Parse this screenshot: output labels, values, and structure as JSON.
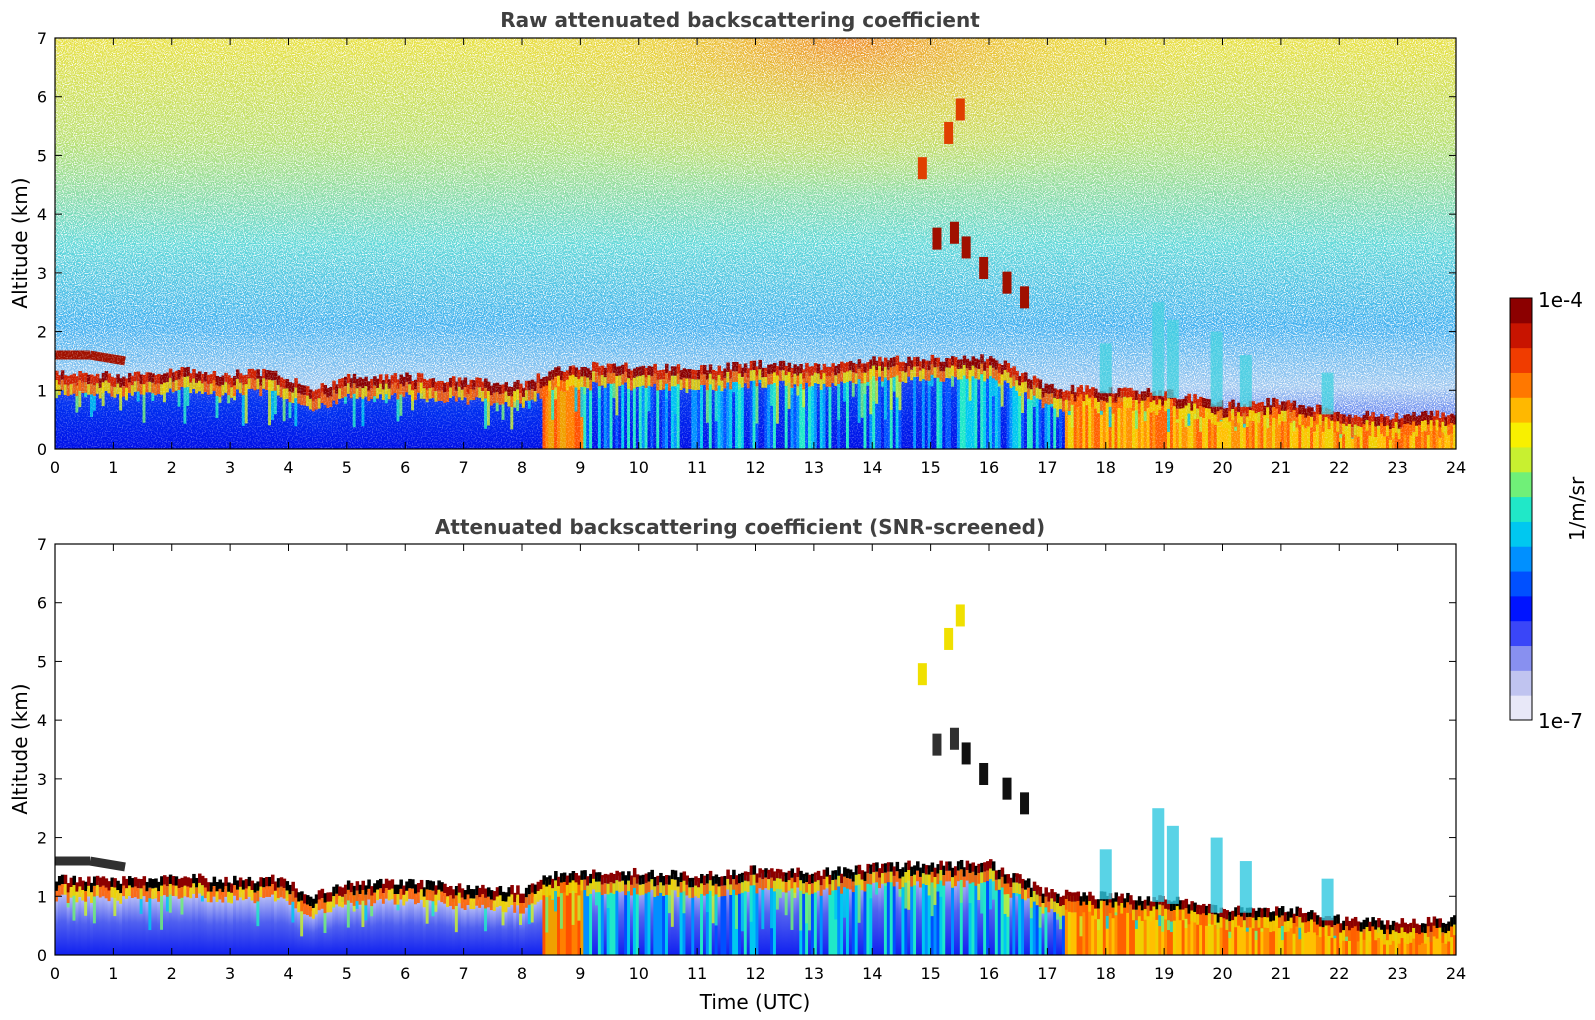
{
  "chart_data": [
    {
      "type": "heatmap",
      "title": "Raw attenuated backscattering coefficient",
      "xlabel": "",
      "ylabel": "Altitude (km)",
      "xlim": [
        0,
        24
      ],
      "ylim": [
        0,
        7
      ],
      "x_ticks": [
        "0",
        "1",
        "2",
        "3",
        "4",
        "5",
        "6",
        "7",
        "8",
        "9",
        "10",
        "11",
        "12",
        "13",
        "14",
        "15",
        "16",
        "17",
        "18",
        "19",
        "20",
        "21",
        "22",
        "23",
        "24"
      ],
      "y_ticks": [
        "0",
        "1",
        "2",
        "3",
        "4",
        "5",
        "6",
        "7"
      ],
      "screened": false,
      "boundary_layer_top_km": [
        {
          "t": 0,
          "z": 1.25
        },
        {
          "t": 1,
          "z": 1.2
        },
        {
          "t": 2,
          "z": 1.28
        },
        {
          "t": 3,
          "z": 1.22
        },
        {
          "t": 3.8,
          "z": 1.25
        },
        {
          "t": 4.4,
          "z": 0.95
        },
        {
          "t": 5,
          "z": 1.15
        },
        {
          "t": 6,
          "z": 1.18
        },
        {
          "t": 7,
          "z": 1.1
        },
        {
          "t": 8,
          "z": 1.05
        },
        {
          "t": 8.5,
          "z": 1.3
        },
        {
          "t": 9,
          "z": 1.35
        },
        {
          "t": 10,
          "z": 1.35
        },
        {
          "t": 11,
          "z": 1.3
        },
        {
          "t": 12,
          "z": 1.4
        },
        {
          "t": 13,
          "z": 1.35
        },
        {
          "t": 14,
          "z": 1.45
        },
        {
          "t": 15,
          "z": 1.5
        },
        {
          "t": 16,
          "z": 1.5
        },
        {
          "t": 17,
          "z": 1.0
        },
        {
          "t": 18,
          "z": 0.95
        },
        {
          "t": 19,
          "z": 0.9
        },
        {
          "t": 20,
          "z": 0.7
        },
        {
          "t": 21,
          "z": 0.75
        },
        {
          "t": 22,
          "z": 0.55
        },
        {
          "t": 23,
          "z": 0.5
        },
        {
          "t": 24,
          "z": 0.55
        }
      ],
      "upper_cloud_layer_km": [
        {
          "t": 0,
          "z": 1.6
        },
        {
          "t": 0.6,
          "z": 1.6
        },
        {
          "t": 1.2,
          "z": 1.5
        }
      ],
      "elevated_cloud_points": [
        {
          "t": 14.85,
          "z": 4.8
        },
        {
          "t": 15.3,
          "z": 5.4
        },
        {
          "t": 15.5,
          "z": 5.8
        },
        {
          "t": 15.1,
          "z": 3.6
        },
        {
          "t": 15.4,
          "z": 3.7
        },
        {
          "t": 15.6,
          "z": 3.45
        },
        {
          "t": 15.9,
          "z": 3.1
        },
        {
          "t": 16.3,
          "z": 2.85
        },
        {
          "t": 16.6,
          "z": 2.6
        }
      ]
    },
    {
      "type": "heatmap",
      "title": "Attenuated backscattering coefficient (SNR-screened)",
      "xlabel": "Time (UTC)",
      "ylabel": "Altitude (km)",
      "xlim": [
        0,
        24
      ],
      "ylim": [
        0,
        7
      ],
      "x_ticks": [
        "0",
        "1",
        "2",
        "3",
        "4",
        "5",
        "6",
        "7",
        "8",
        "9",
        "10",
        "11",
        "12",
        "13",
        "14",
        "15",
        "16",
        "17",
        "18",
        "19",
        "20",
        "21",
        "22",
        "23",
        "24"
      ],
      "y_ticks": [
        "0",
        "1",
        "2",
        "3",
        "4",
        "5",
        "6",
        "7"
      ],
      "screened": true
    }
  ],
  "colorbar": {
    "label": "1/m/sr",
    "max_label": "1e-4",
    "min_label": "1e-7",
    "scale": "log",
    "colors": [
      "#e8e8f8",
      "#c0c4f0",
      "#8890f0",
      "#3a46f8",
      "#0014ff",
      "#0050ff",
      "#0090ff",
      "#00c8f0",
      "#20e8c8",
      "#70f078",
      "#c8f030",
      "#f8f000",
      "#ffb800",
      "#ff7800",
      "#f03c00",
      "#c81400",
      "#8c0000"
    ]
  }
}
